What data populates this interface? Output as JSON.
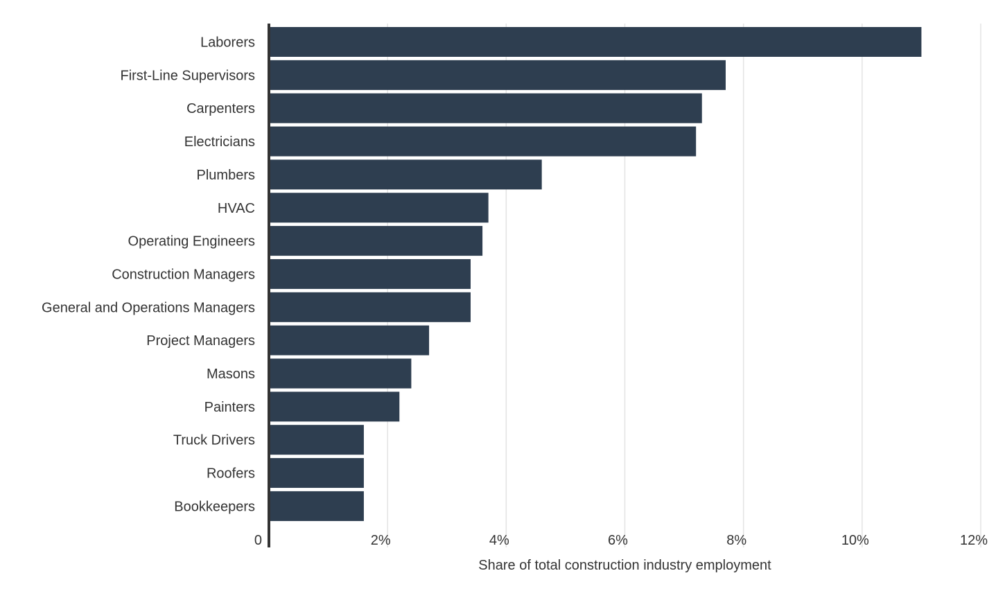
{
  "chart_data": {
    "type": "bar",
    "orientation": "horizontal",
    "categories": [
      "Laborers",
      "First-Line Supervisors",
      "Carpenters",
      "Electricians",
      "Plumbers",
      "HVAC",
      "Operating Engineers",
      "Construction Managers",
      "General and Operations Managers",
      "Project Managers",
      "Masons",
      "Painters",
      "Truck Drivers",
      "Roofers",
      "Bookkeepers"
    ],
    "values": [
      11.0,
      7.7,
      7.3,
      7.2,
      4.6,
      3.7,
      3.6,
      3.4,
      3.4,
      2.7,
      2.4,
      2.2,
      1.6,
      1.6,
      1.6
    ],
    "xlabel": "Share of total construction industry employment",
    "ylabel": "",
    "xlim": [
      0,
      12
    ],
    "ticks": [
      {
        "value": 0,
        "label": "0"
      },
      {
        "value": 2,
        "label": "2%"
      },
      {
        "value": 4,
        "label": "4%"
      },
      {
        "value": 6,
        "label": "6%"
      },
      {
        "value": 8,
        "label": "8%"
      },
      {
        "value": 10,
        "label": "10%"
      },
      {
        "value": 12,
        "label": "12%"
      }
    ],
    "grid": true,
    "bar_color": "#2e3e50",
    "grid_color": "#e3e3e3",
    "text_color": "#333333"
  }
}
